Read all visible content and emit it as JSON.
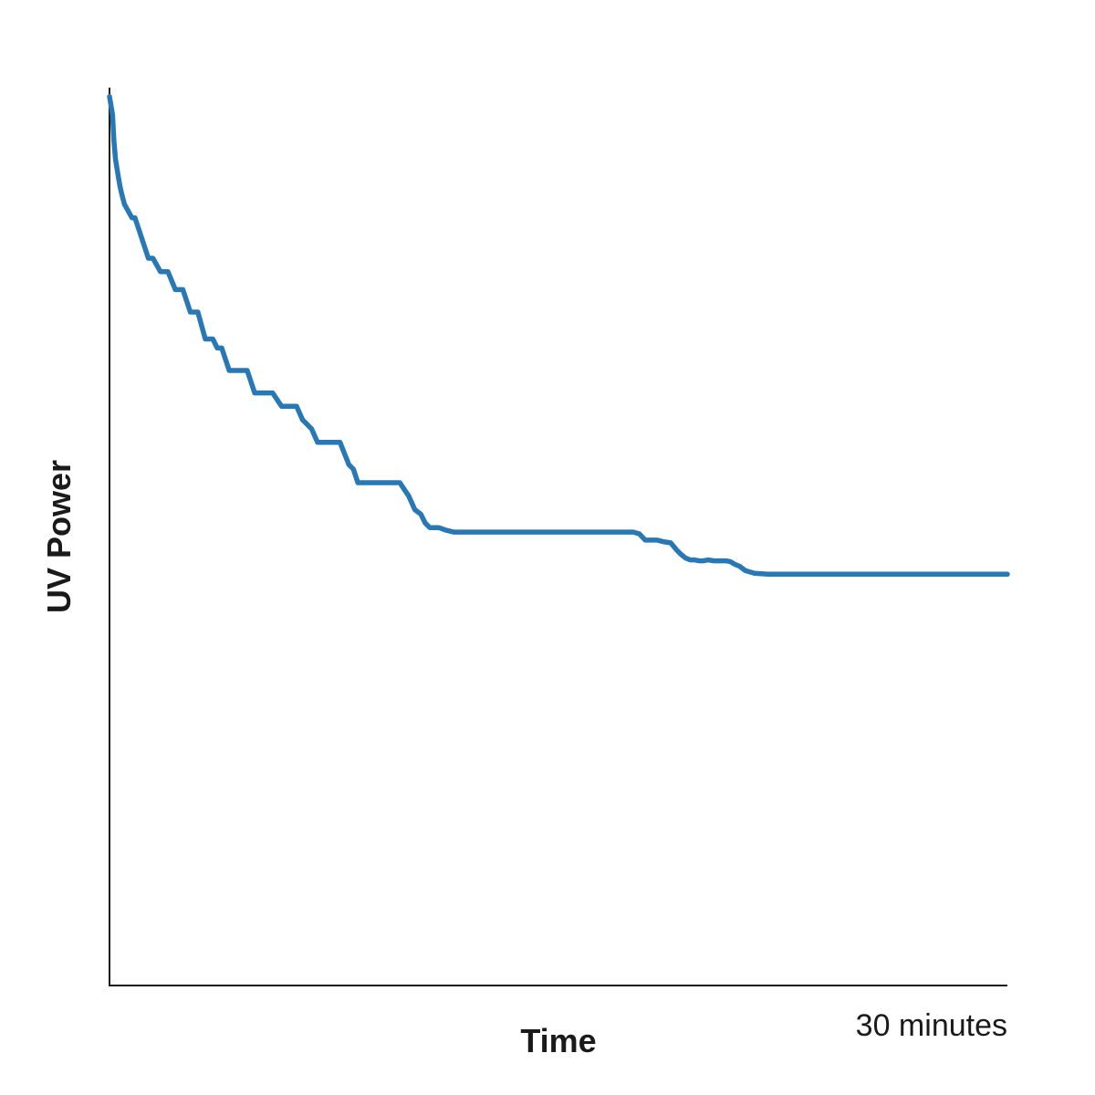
{
  "chart_data": {
    "type": "line",
    "title": "",
    "xlabel": "Time",
    "ylabel": "UV Power",
    "x_tick_label": "30 minutes",
    "x_unit": "minutes",
    "xlim": [
      0,
      30
    ],
    "ylim": [
      0,
      100
    ],
    "grid": false,
    "legend": "none",
    "colors": {
      "series": "#2878b5",
      "axis": "#1a1a1a"
    },
    "series": [
      {
        "x": [
          0.0,
          0.1,
          0.15,
          0.2,
          0.3,
          0.35,
          0.42,
          0.5,
          0.75,
          0.85,
          1.0,
          1.3,
          1.45,
          1.7,
          1.95,
          2.2,
          2.45,
          2.7,
          2.95,
          3.2,
          3.45,
          3.6,
          3.75,
          4.0,
          4.5,
          4.6,
          4.85,
          5.3,
          5.45,
          5.75,
          6.0,
          6.25,
          6.45,
          6.75,
          6.95,
          7.1,
          7.4,
          7.7,
          8.0,
          8.15,
          8.3,
          8.6,
          8.95,
          9.15,
          9.3,
          9.5,
          9.7,
          9.8,
          10.0,
          10.2,
          10.4,
          10.55,
          10.7,
          10.85,
          11.0,
          11.25,
          11.5,
          11.75,
          12.0,
          13.0,
          14.0,
          15.0,
          16.0,
          17.0,
          17.5,
          17.7,
          17.9,
          18.1,
          18.3,
          18.55,
          18.75,
          18.95,
          19.1,
          19.25,
          19.4,
          19.55,
          19.7,
          19.85,
          20.0,
          20.2,
          20.4,
          20.6,
          20.75,
          20.9,
          21.05,
          21.25,
          21.55,
          22.0,
          23.0,
          24.0,
          25.0,
          26.0,
          27.0,
          28.0,
          29.0,
          30.0
        ],
        "values": [
          99.0,
          97.0,
          94.0,
          92.0,
          90.0,
          89.0,
          88.0,
          87.0,
          85.5,
          85.5,
          84.0,
          81.0,
          81.0,
          79.5,
          79.5,
          77.5,
          77.5,
          75.0,
          75.0,
          72.0,
          72.0,
          71.0,
          71.0,
          68.5,
          68.5,
          68.5,
          66.0,
          66.0,
          66.0,
          64.5,
          64.5,
          64.5,
          63.0,
          62.0,
          60.5,
          60.5,
          60.5,
          60.5,
          58.0,
          57.5,
          56.0,
          56.0,
          56.0,
          56.0,
          56.0,
          56.0,
          56.0,
          55.5,
          54.5,
          53.0,
          52.5,
          51.5,
          51.0,
          51.0,
          51.0,
          50.7,
          50.5,
          50.5,
          50.5,
          50.5,
          50.5,
          50.5,
          50.5,
          50.5,
          50.5,
          50.3,
          49.6,
          49.6,
          49.6,
          49.4,
          49.3,
          48.5,
          48.0,
          47.6,
          47.4,
          47.4,
          47.3,
          47.3,
          47.4,
          47.3,
          47.3,
          47.3,
          47.2,
          46.9,
          46.7,
          46.2,
          45.9,
          45.8,
          45.8,
          45.8,
          45.8,
          45.8,
          45.8,
          45.8,
          45.8,
          45.8
        ]
      }
    ]
  }
}
